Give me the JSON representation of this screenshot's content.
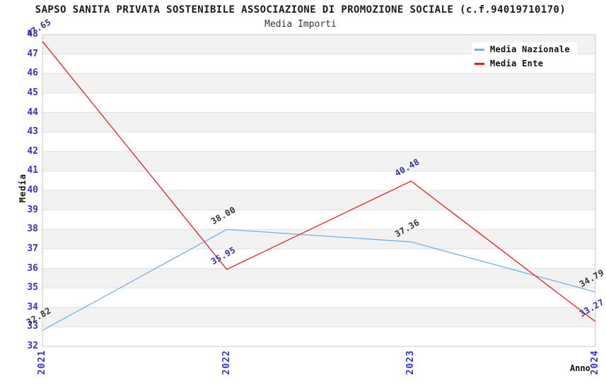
{
  "header": {
    "title": "SAPSO SANITA PRIVATA SOSTENIBILE ASSOCIAZIONE DI PROMOZIONE SOCIALE (c.f.94019710170)",
    "subtitle": "Media Importi"
  },
  "legend": {
    "items": [
      {
        "label": "Media Nazionale",
        "color": "#74b0e6"
      },
      {
        "label": "Media Ente",
        "color": "#e81e1e"
      }
    ]
  },
  "chart_data": {
    "type": "line",
    "title": "SAPSO SANITA PRIVATA SOSTENIBILE ASSOCIAZIONE DI PROMOZIONE SOCIALE (c.f.94019710170)",
    "subtitle": "Media Importi",
    "x": [
      "2021",
      "2022",
      "2023",
      "2024"
    ],
    "xlabel": "Anno",
    "ylabel": "Media",
    "ylim": [
      32,
      48
    ],
    "ytick_step": 1,
    "grid": true,
    "legend_position": "top-right",
    "tick_color": "#3333cc",
    "band_color": "#f2f2f2",
    "grid_color": "#e0e0e0",
    "border_color": "#c9c9c9",
    "series": [
      {
        "name": "Media Nazionale",
        "color": "#74b0e6",
        "label_color": "#333333",
        "values": [
          32.82,
          38.0,
          37.36,
          34.79
        ],
        "point_labels": [
          "32.82",
          "38.00",
          "37.36",
          "34.79"
        ]
      },
      {
        "name": "Media Ente",
        "color": "#e81e1e",
        "label_color": "#333399",
        "values": [
          47.65,
          35.95,
          40.48,
          33.27
        ],
        "point_labels": [
          "47.65",
          "35.95",
          "40.48",
          "33.27"
        ]
      }
    ]
  }
}
